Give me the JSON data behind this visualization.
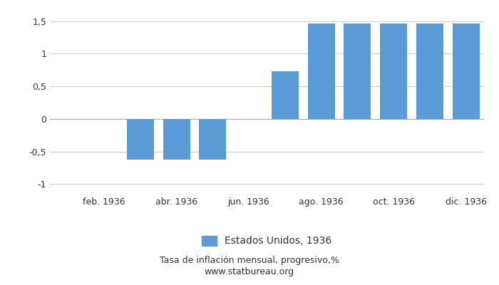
{
  "month_indices": [
    1,
    2,
    3,
    4,
    5,
    6,
    7,
    8,
    9,
    10,
    11,
    12
  ],
  "values": [
    0,
    0,
    -0.63,
    -0.63,
    -0.63,
    0,
    0.73,
    1.46,
    1.46,
    1.46,
    1.46,
    1.46
  ],
  "bar_color": "#5b9bd5",
  "ylim": [
    -1.15,
    1.65
  ],
  "yticks": [
    -1,
    -0.5,
    0,
    0.5,
    1,
    1.5
  ],
  "ytick_labels": [
    "-1",
    "-0,5",
    "0",
    "0,5",
    "1",
    "1,5"
  ],
  "xtick_positions": [
    2,
    4,
    6,
    8,
    10,
    12
  ],
  "xtick_labels": [
    "feb. 1936",
    "abr. 1936",
    "jun. 1936",
    "ago. 1936",
    "oct. 1936",
    "dic. 1936"
  ],
  "legend_label": "Estados Unidos, 1936",
  "subtitle": "Tasa de inflación mensual, progresivo,%",
  "website": "www.statbureau.org",
  "background_color": "#ffffff",
  "grid_color": "#cccccc",
  "text_color": "#333333",
  "bar_width": 0.75
}
